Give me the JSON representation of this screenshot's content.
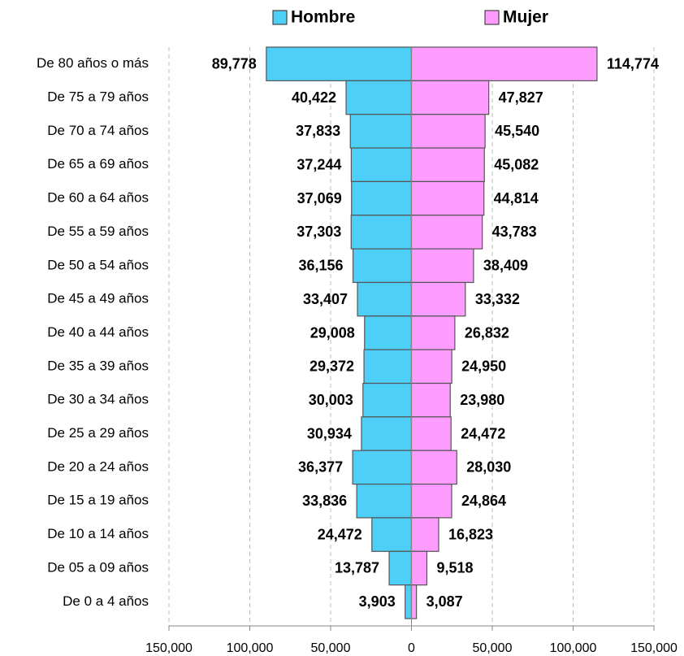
{
  "chart_data": {
    "type": "pyramid",
    "categories": [
      "De 80 años o más",
      "De 75 a 79 años",
      "De 70 a 74 años",
      "De 65 a 69 años",
      "De 60 a 64 años",
      "De 55 a 59 años",
      "De 50 a 54 años",
      "De 45 a 49 años",
      "De 40 a 44 años",
      "De 35 a 39 años",
      "De 30 a 34 años",
      "De 25 a 29 años",
      "De 20 a 24 años",
      "De 15 a 19 años",
      "De 10 a 14 años",
      "De 05 a 09 años",
      "De 0 a 4 años"
    ],
    "series": [
      {
        "name": "Hombre",
        "color": "#4dcff8",
        "values": [
          89778,
          40422,
          37833,
          37244,
          37069,
          37303,
          36156,
          33407,
          29008,
          29372,
          30003,
          30934,
          36377,
          33836,
          24472,
          13787,
          3903
        ],
        "value_labels": [
          "89,778",
          "40,422",
          "37,833",
          "37,244",
          "37,069",
          "37,303",
          "36,156",
          "33,407",
          "29,008",
          "29,372",
          "30,003",
          "30,934",
          "36,377",
          "33,836",
          "24,472",
          "13,787",
          "3,903"
        ]
      },
      {
        "name": "Mujer",
        "color": "#ff9cff",
        "values": [
          114774,
          47827,
          45540,
          45082,
          44814,
          43783,
          38409,
          33332,
          26832,
          24950,
          23980,
          24472,
          28030,
          24864,
          16823,
          9518,
          3087
        ],
        "value_labels": [
          "114,774",
          "47,827",
          "45,540",
          "45,082",
          "44,814",
          "43,783",
          "38,409",
          "33,332",
          "26,832",
          "24,950",
          "23,980",
          "24,472",
          "28,030",
          "24,864",
          "16,823",
          "9,518",
          "3,087"
        ]
      }
    ],
    "xlim": [
      -150000,
      150000
    ],
    "xticks": [
      {
        "value": -150000,
        "label": "150,000"
      },
      {
        "value": -100000,
        "label": "100,000"
      },
      {
        "value": -50000,
        "label": "50,000"
      },
      0,
      {
        "value": 50000,
        "label": "50,000"
      },
      {
        "value": 100000,
        "label": "100,000"
      },
      {
        "value": 150000,
        "label": "150,000"
      }
    ],
    "grid": true,
    "legend": "top"
  }
}
